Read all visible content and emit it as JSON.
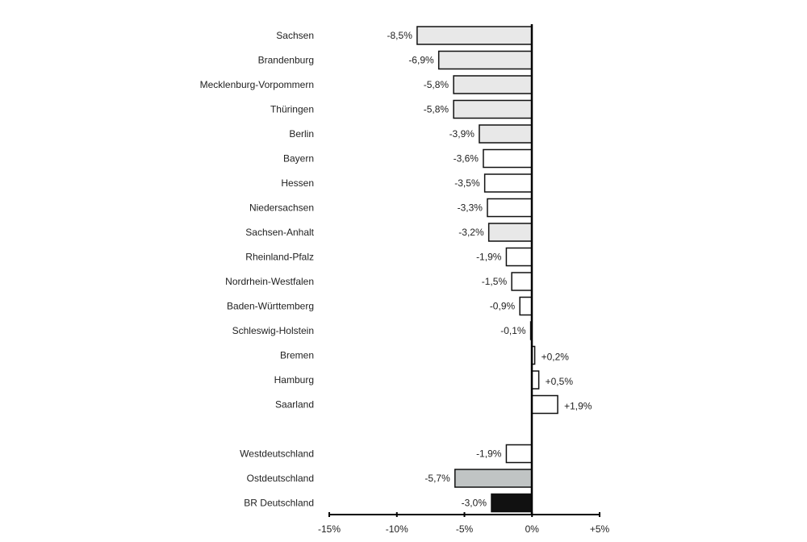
{
  "chart_data": {
    "type": "bar",
    "orientation": "horizontal",
    "title": "",
    "xlabel": "",
    "ylabel": "",
    "xlim": [
      -15,
      5
    ],
    "grid": false,
    "x_ticks": [
      "-15%",
      "-10%",
      "-5%",
      "0%",
      "+5%"
    ],
    "x_tick_values": [
      -15,
      -10,
      -5,
      0,
      5
    ],
    "categories": [
      "Sachsen",
      "Brandenburg",
      "Mecklenburg-Vorpommern",
      "Thüringen",
      "Berlin",
      "Bayern",
      "Hessen",
      "Niedersachsen",
      "Sachsen-Anhalt",
      "Rheinland-Pfalz",
      "Nordrhein-Westfalen",
      "Baden-Württemberg",
      "Schleswig-Holstein",
      "Bremen",
      "Hamburg",
      "Saarland",
      "Westdeutschland",
      "Ostdeutschland",
      "BR Deutschland"
    ],
    "values": [
      -8.5,
      -6.9,
      -5.8,
      -5.8,
      -3.9,
      -3.6,
      -3.5,
      -3.3,
      -3.2,
      -1.9,
      -1.5,
      -0.9,
      -0.1,
      0.2,
      0.5,
      1.9,
      -1.9,
      -5.7,
      -3.0
    ],
    "data_labels": [
      "-8,5%",
      "-6,9%",
      "-5,8%",
      "-5,8%",
      "-3,9%",
      "-3,6%",
      "-3,5%",
      "-3,3%",
      "-3,2%",
      "-1,9%",
      "-1,5%",
      "-0,9%",
      "-0,1%",
      "+0,2%",
      "+0,5%",
      "+1,9%",
      "-1,9%",
      "-5,7%",
      "-3,0%"
    ],
    "bar_colors": [
      "#e8e8e8",
      "#e8e8e8",
      "#e8e8e8",
      "#e8e8e8",
      "#e8e8e8",
      "#ffffff",
      "#ffffff",
      "#ffffff",
      "#e8e8e8",
      "#ffffff",
      "#ffffff",
      "#ffffff",
      "#ffffff",
      "#ffffff",
      "#ffffff",
      "#ffffff",
      "#ffffff",
      "#c0c4c4",
      "#111111"
    ]
  }
}
